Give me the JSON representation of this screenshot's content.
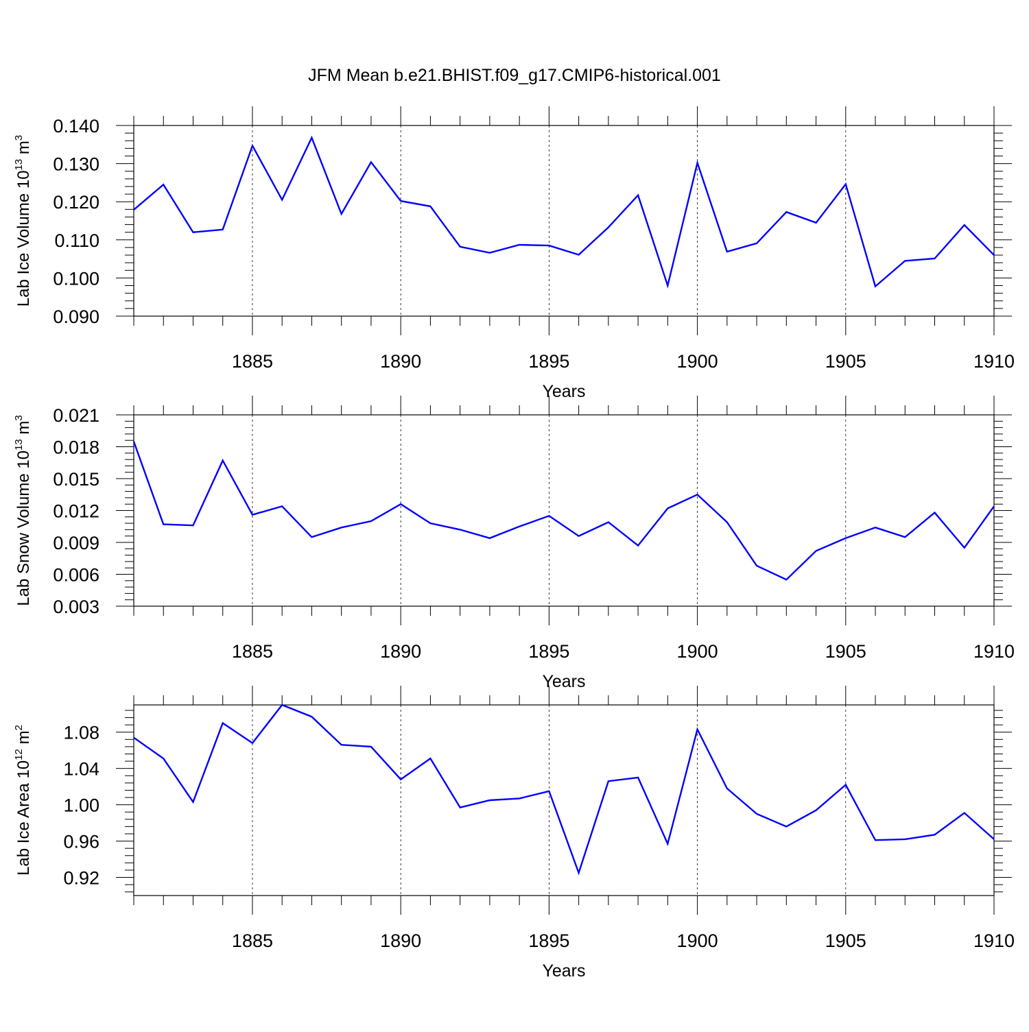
{
  "title": "JFM Mean b.e21.BHIST.f09_g17.CMIP6-historical.001",
  "colors": {
    "line": "#0000ff",
    "axis": "#000000",
    "grid": "#000000"
  },
  "chart_data": [
    {
      "type": "line",
      "ylabel": {
        "prefix": "Lab Ice Volume 10",
        "sup1": "13",
        "mid": " m",
        "sup2": "3"
      },
      "xlabel": "Years",
      "xlim": [
        1881,
        1910
      ],
      "ylim": [
        0.09,
        0.14
      ],
      "yticks": [
        0.09,
        0.1,
        0.11,
        0.12,
        0.13,
        0.14
      ],
      "ytick_labels": [
        "0.090",
        "0.100",
        "0.110",
        "0.120",
        "0.130",
        "0.140"
      ],
      "xticks": [
        1885,
        1890,
        1895,
        1900,
        1905,
        1910
      ],
      "xtick_labels": [
        "1885",
        "1890",
        "1895",
        "1900",
        "1905",
        "1910"
      ],
      "grid": "vertical dashed at labeled years",
      "series": [
        {
          "x": [
            1881,
            1882,
            1883,
            1884,
            1885,
            1886,
            1887,
            1888,
            1889,
            1890,
            1891,
            1892,
            1893,
            1894,
            1895,
            1896,
            1897,
            1898,
            1899,
            1900,
            1901,
            1902,
            1903,
            1904,
            1905,
            1906,
            1907,
            1908,
            1909,
            1910
          ],
          "values": [
            0.1179,
            0.1245,
            0.112,
            0.1127,
            0.1347,
            0.1205,
            0.1368,
            0.1168,
            0.1304,
            0.1202,
            0.1188,
            0.1082,
            0.1066,
            0.1087,
            0.1085,
            0.1061,
            0.1133,
            0.1217,
            0.098,
            0.1302,
            0.1069,
            0.1091,
            0.1173,
            0.1145,
            0.1246,
            0.0978,
            0.1045,
            0.1051,
            0.1139,
            0.106
          ]
        }
      ]
    },
    {
      "type": "line",
      "ylabel": {
        "prefix": "Lab Snow Volume 10",
        "sup1": "13",
        "mid": " m",
        "sup2": "3"
      },
      "xlabel": "Years",
      "xlim": [
        1881,
        1910
      ],
      "ylim": [
        0.003,
        0.021
      ],
      "yticks": [
        0.003,
        0.006,
        0.009,
        0.012,
        0.015,
        0.018,
        0.021
      ],
      "ytick_labels": [
        "0.003",
        "0.006",
        "0.009",
        "0.012",
        "0.015",
        "0.018",
        "0.021"
      ],
      "xticks": [
        1885,
        1890,
        1895,
        1900,
        1905,
        1910
      ],
      "xtick_labels": [
        "1885",
        "1890",
        "1895",
        "1900",
        "1905",
        "1910"
      ],
      "grid": "vertical dashed at labeled years",
      "series": [
        {
          "x": [
            1881,
            1882,
            1883,
            1884,
            1885,
            1886,
            1887,
            1888,
            1889,
            1890,
            1891,
            1892,
            1893,
            1894,
            1895,
            1896,
            1897,
            1898,
            1899,
            1900,
            1901,
            1902,
            1903,
            1904,
            1905,
            1906,
            1907,
            1908,
            1909,
            1910
          ],
          "values": [
            0.0185,
            0.0107,
            0.0106,
            0.0167,
            0.0116,
            0.0124,
            0.0095,
            0.0104,
            0.011,
            0.0126,
            0.0108,
            0.0102,
            0.0094,
            0.0105,
            0.0115,
            0.0096,
            0.0109,
            0.0087,
            0.0122,
            0.0135,
            0.0109,
            0.0068,
            0.0055,
            0.0082,
            0.0094,
            0.0104,
            0.0095,
            0.0118,
            0.0085,
            0.0124
          ]
        }
      ]
    },
    {
      "type": "line",
      "ylabel": {
        "prefix": "Lab Ice Area 10",
        "sup1": "12",
        "mid": " m",
        "sup2": "2"
      },
      "xlabel": "Years",
      "xlim": [
        1881,
        1910
      ],
      "ylim": [
        0.9,
        1.11
      ],
      "yticks": [
        0.92,
        0.96,
        1.0,
        1.04,
        1.08
      ],
      "ytick_labels": [
        "0.92",
        "0.96",
        "1.00",
        "1.04",
        "1.08"
      ],
      "xticks": [
        1885,
        1890,
        1895,
        1900,
        1905,
        1910
      ],
      "xtick_labels": [
        "1885",
        "1890",
        "1895",
        "1900",
        "1905",
        "1910"
      ],
      "grid": "vertical dashed at labeled years",
      "series": [
        {
          "x": [
            1881,
            1882,
            1883,
            1884,
            1885,
            1886,
            1887,
            1888,
            1889,
            1890,
            1891,
            1892,
            1893,
            1894,
            1895,
            1896,
            1897,
            1898,
            1899,
            1900,
            1901,
            1902,
            1903,
            1904,
            1905,
            1906,
            1907,
            1908,
            1909,
            1910
          ],
          "values": [
            1.074,
            1.051,
            1.003,
            1.09,
            1.068,
            1.11,
            1.097,
            1.066,
            1.064,
            1.028,
            1.051,
            0.997,
            1.005,
            1.007,
            1.015,
            0.925,
            1.026,
            1.03,
            0.957,
            1.083,
            1.018,
            0.99,
            0.976,
            0.994,
            1.022,
            0.961,
            0.962,
            0.967,
            0.991,
            0.962
          ]
        }
      ]
    }
  ]
}
